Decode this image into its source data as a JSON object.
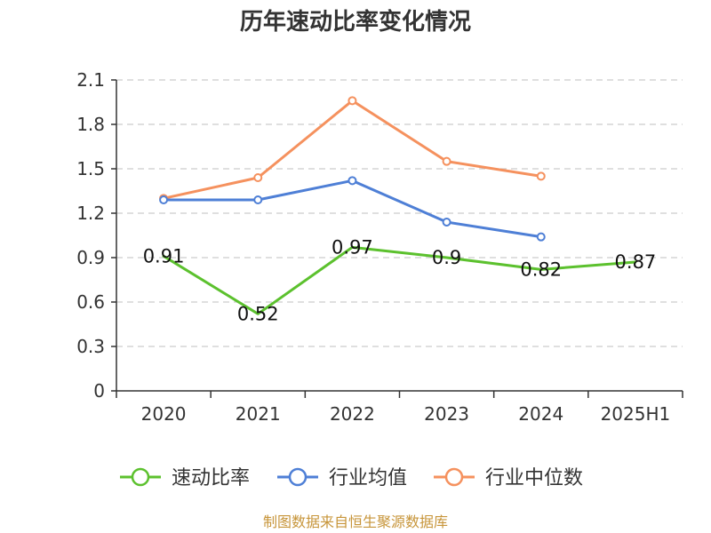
{
  "chart_data": {
    "type": "line",
    "title": "历年速动比率变化情况",
    "xlabel": "",
    "ylabel": "",
    "categories": [
      "2020",
      "2021",
      "2022",
      "2023",
      "2024",
      "2025H1"
    ],
    "ylim": [
      0,
      2.1
    ],
    "yticks": [
      "0",
      "0.3",
      "0.6",
      "0.9",
      "1.2",
      "1.5",
      "1.8",
      "2.1"
    ],
    "grid": true,
    "legend_position": "bottom",
    "series": [
      {
        "name": "速动比率",
        "color": "#5cc12e",
        "values": [
          0.91,
          0.52,
          0.97,
          0.9,
          0.82,
          0.87
        ],
        "labels": [
          "0.91",
          "0.52",
          "0.97",
          "0.9",
          "0.82",
          "0.87"
        ]
      },
      {
        "name": "行业均值",
        "color": "#4e7fd6",
        "values": [
          1.29,
          1.29,
          1.42,
          1.14,
          1.04,
          null
        ]
      },
      {
        "name": "行业中位数",
        "color": "#f5915e",
        "values": [
          1.3,
          1.44,
          1.96,
          1.55,
          1.45,
          null
        ]
      }
    ]
  },
  "source_text": "制图数据来自恒生聚源数据库"
}
